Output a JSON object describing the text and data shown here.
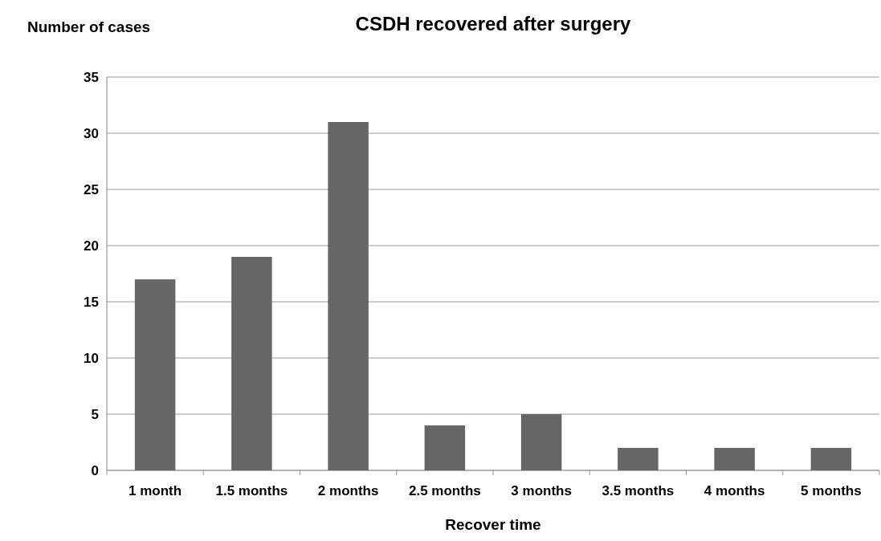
{
  "chart_data": {
    "type": "bar",
    "title": "CSDH recovered after surgery",
    "xlabel": "Recover time",
    "ylabel": "Number of cases",
    "categories": [
      "1 month",
      "1.5 months",
      "2 months",
      "2.5 months",
      "3 months",
      "3.5 months",
      "4 months",
      "5 months"
    ],
    "values": [
      17,
      19,
      31,
      4,
      5,
      2,
      2,
      2
    ],
    "color": "#666666",
    "ylim": [
      0,
      35
    ],
    "yticks": [
      0,
      5,
      10,
      15,
      20,
      25,
      30,
      35
    ],
    "grid": "y"
  }
}
